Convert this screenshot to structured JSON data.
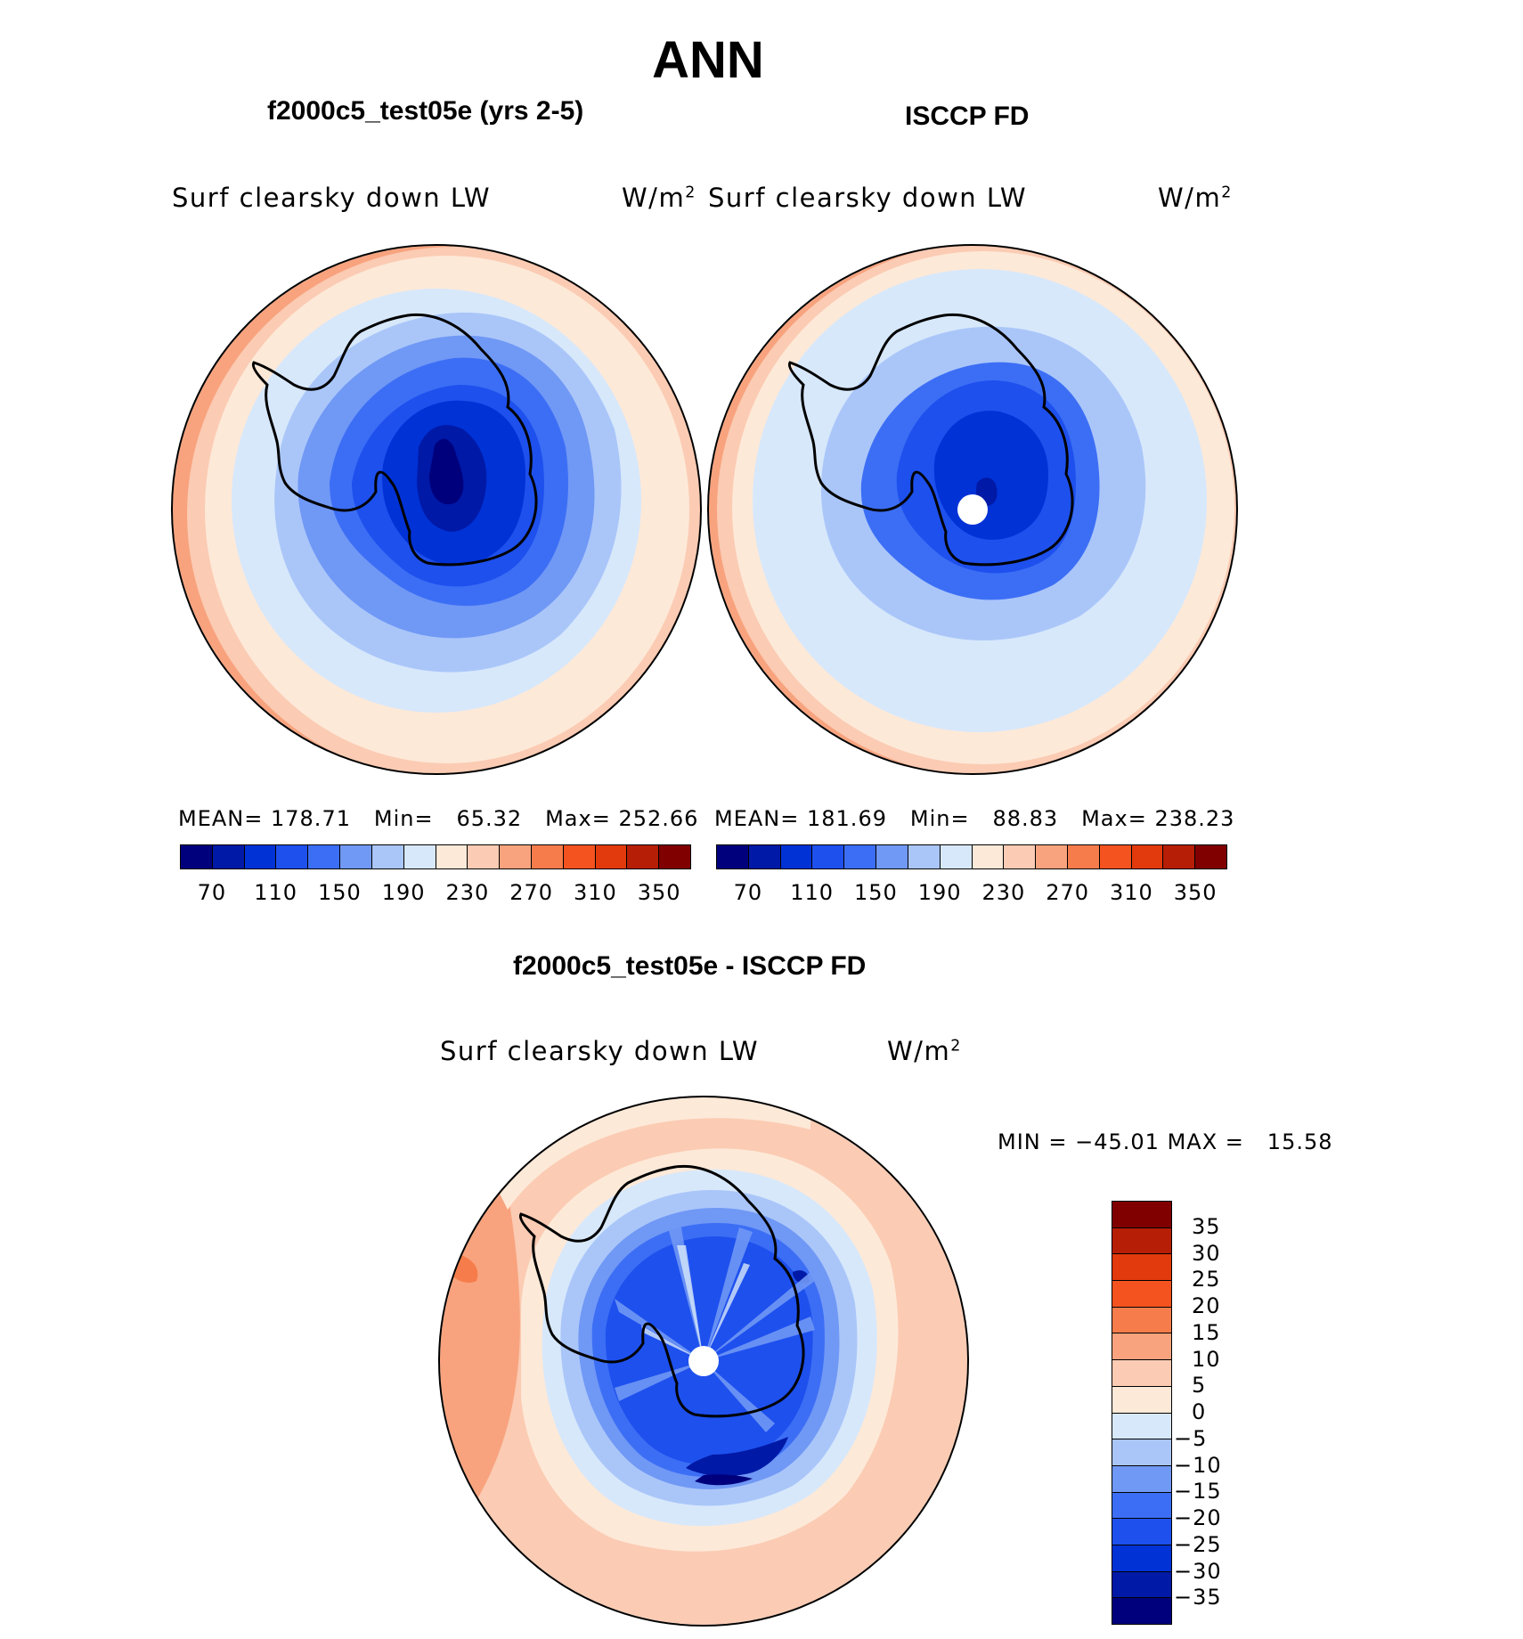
{
  "title": "ANN",
  "palette": {
    "blue_red_16": [
      "#00007d",
      "#0019a6",
      "#0032d6",
      "#1e50ee",
      "#3c6ef5",
      "#7098f5",
      "#aac6f9",
      "#d7e8fb",
      "#fde9d8",
      "#fbcbb3",
      "#f8a37e",
      "#f67d4b",
      "#f4531f",
      "#e23a0c",
      "#b71e06",
      "#800000"
    ],
    "blue_red_16_v": [
      "#00007d",
      "#0019a6",
      "#0032d6",
      "#1e50ee",
      "#3c6ef5",
      "#7098f5",
      "#aac6f9",
      "#d7e8fb",
      "#fde9d8",
      "#fbcbb3",
      "#f8a37e",
      "#f67d4b",
      "#f4531f",
      "#e23a0c",
      "#b71e06",
      "#800000"
    ]
  },
  "panels": [
    {
      "id": "model",
      "title": "f2000c5_test05e (yrs 2-5)",
      "variable": "Surf clearsky down LW",
      "units": "W/m",
      "units_sup": "2",
      "stats": {
        "mean_label": "MEAN=",
        "mean": "178.71",
        "min_label": "Min=",
        "min": "65.32",
        "max_label": "Max=",
        "max": "252.66"
      },
      "colorbar_ticks": [
        "70",
        "110",
        "150",
        "190",
        "230",
        "270",
        "310",
        "350"
      ]
    },
    {
      "id": "obs",
      "title": "ISCCP FD",
      "variable": "Surf clearsky down LW",
      "units": "W/m",
      "units_sup": "2",
      "stats": {
        "mean_label": "MEAN=",
        "mean": "181.69",
        "min_label": "Min=",
        "min": "88.83",
        "max_label": "Max=",
        "max": "238.23"
      },
      "colorbar_ticks": [
        "70",
        "110",
        "150",
        "190",
        "230",
        "270",
        "310",
        "350"
      ]
    },
    {
      "id": "diff",
      "title": "f2000c5_test05e - ISCCP FD",
      "variable": "Surf clearsky down LW",
      "units": "W/m",
      "units_sup": "2",
      "stats": {
        "min_label": "MIN =",
        "min": "−45.01",
        "max_label": "MAX =",
        "max": "15.58"
      },
      "colorbar_ticks": [
        "35",
        "30",
        "25",
        "20",
        "15",
        "10",
        "5",
        "0",
        "−5",
        "−10",
        "−15",
        "−20",
        "−25",
        "−30",
        "−35"
      ]
    }
  ]
}
